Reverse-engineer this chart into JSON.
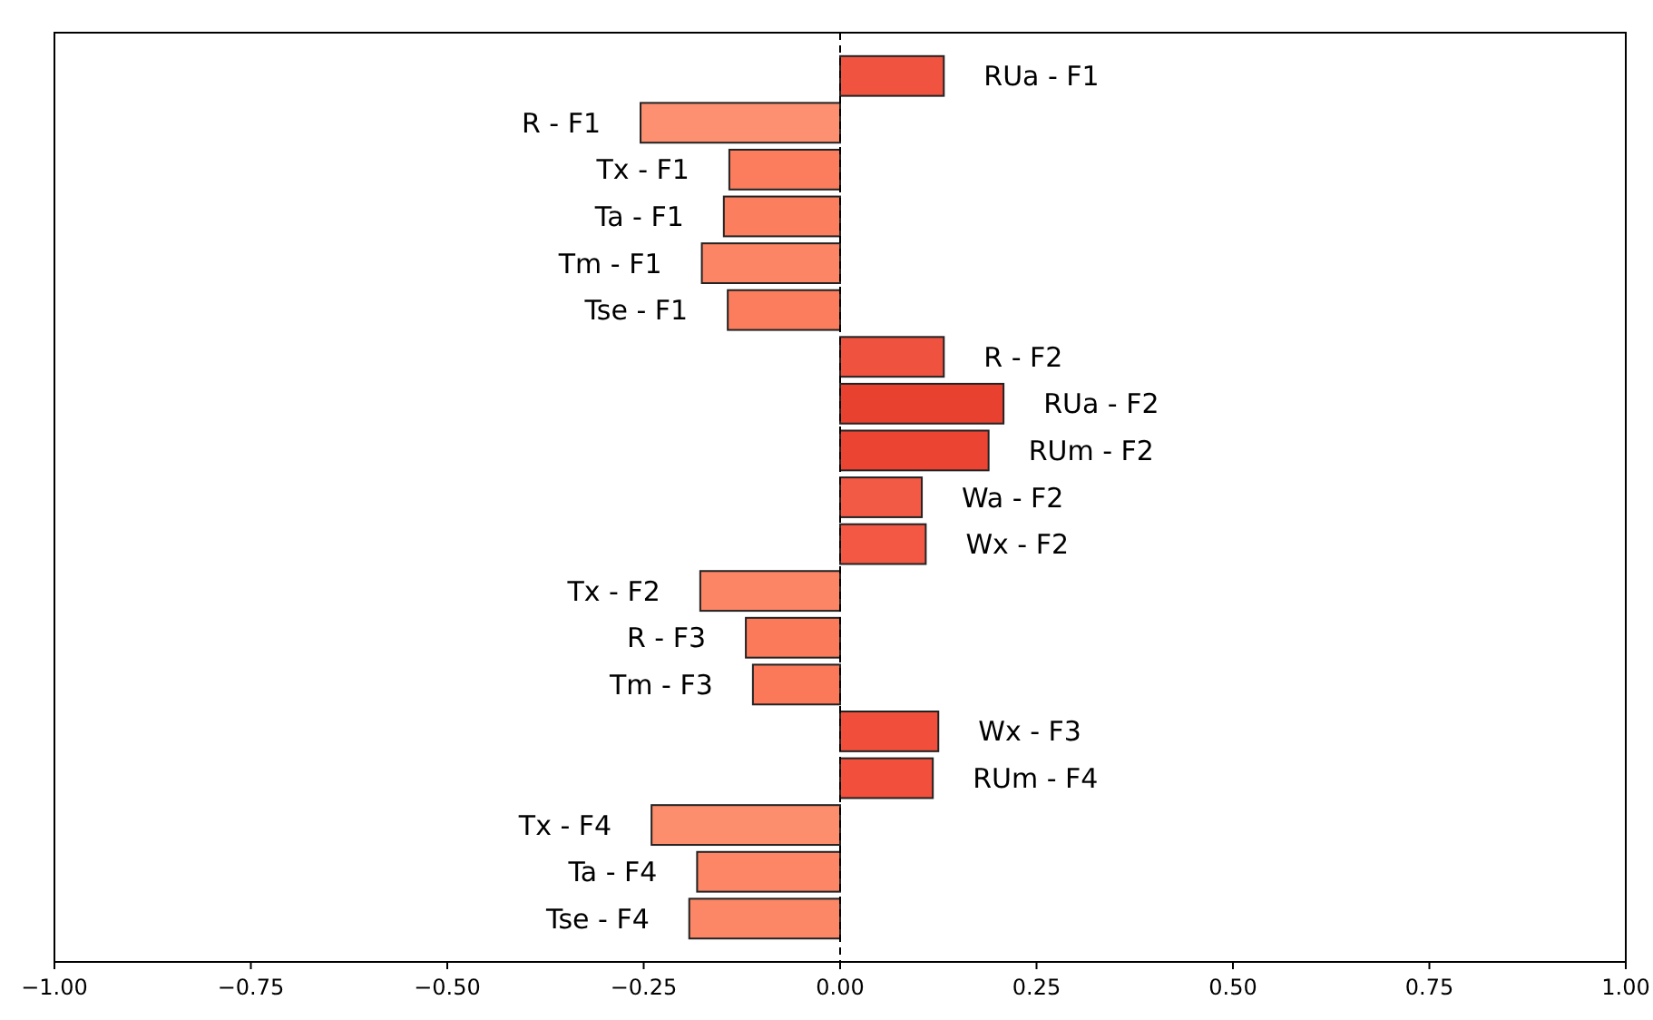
{
  "chart_data": {
    "type": "bar",
    "orientation": "horizontal",
    "tick_labels": "x",
    "categories": [
      "RUa - F1",
      "R - F1",
      "Tx - F1",
      "Ta - F1",
      "Tm - F1",
      "Tse - F1",
      "R - F2",
      "RUa - F2",
      "RUm - F2",
      "Wa - F2",
      "Wx - F2",
      "Tx - F2",
      "R - F3",
      "Tm - F3",
      "Wx - F3",
      "RUm - F4",
      "Tx - F4",
      "Ta - F4",
      "Tse - F4"
    ],
    "values": [
      0.132,
      -0.254,
      -0.141,
      -0.148,
      -0.176,
      -0.143,
      0.132,
      0.208,
      0.189,
      0.104,
      0.109,
      -0.178,
      -0.12,
      -0.111,
      0.125,
      0.118,
      -0.24,
      -0.182,
      -0.192
    ],
    "colors": [
      "#f05340",
      "#fc9070",
      "#fb7d5d",
      "#fb7e5e",
      "#fc8565",
      "#fb7d5d",
      "#f05240",
      "#e9412f",
      "#ec4433",
      "#f35a45",
      "#f35844",
      "#fc8565",
      "#fb7a5a",
      "#fb7858",
      "#f14f3c",
      "#f24f3c",
      "#fc8d6d",
      "#fc8666",
      "#fc8767"
    ],
    "xlim": [
      -1,
      1
    ],
    "xticks": [
      {
        "value": -1,
        "label": "−1.00"
      },
      {
        "value": -0.75,
        "label": "−0.75"
      },
      {
        "value": -0.5,
        "label": "−0.50"
      },
      {
        "value": -0.25,
        "label": "−0.25"
      },
      {
        "value": 0,
        "label": "0.00"
      },
      {
        "value": 0.25,
        "label": "0.25"
      },
      {
        "value": 0.5,
        "label": "0.50"
      },
      {
        "value": 0.75,
        "label": "0.75"
      },
      {
        "value": 1,
        "label": "1.00"
      }
    ],
    "ref_lines": [
      {
        "axis": "x",
        "value": 0,
        "color": "#000000",
        "line_style": "dashed"
      }
    ],
    "grid": false
  }
}
